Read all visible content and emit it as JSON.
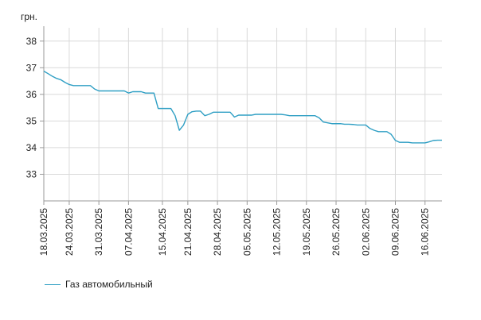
{
  "chart_data": {
    "type": "line",
    "ylabel": "грн.",
    "ylim": [
      32,
      38.5
    ],
    "yticks": [
      33,
      34,
      35,
      36,
      37,
      38
    ],
    "xlim": [
      "2025-03-18",
      "2025-06-20"
    ],
    "xticks": [
      "18.03.2025",
      "24.03.2025",
      "31.03.2025",
      "07.04.2025",
      "15.04.2025",
      "21.04.2025",
      "28.04.2025",
      "05.05.2025",
      "12.05.2025",
      "19.05.2025",
      "26.05.2025",
      "02.06.2025",
      "09.06.2025",
      "16.06.2025"
    ],
    "grid": true,
    "legend_position": "bottom-left",
    "series": [
      {
        "name": "Газ автомобильный",
        "color": "#2f9fc4",
        "points": [
          [
            "2025-03-18",
            36.87
          ],
          [
            "2025-03-19",
            36.78
          ],
          [
            "2025-03-20",
            36.68
          ],
          [
            "2025-03-21",
            36.6
          ],
          [
            "2025-03-22",
            36.55
          ],
          [
            "2025-03-23",
            36.45
          ],
          [
            "2025-03-24",
            36.37
          ],
          [
            "2025-03-25",
            36.33
          ],
          [
            "2025-03-26",
            36.33
          ],
          [
            "2025-03-27",
            36.33
          ],
          [
            "2025-03-28",
            36.33
          ],
          [
            "2025-03-29",
            36.33
          ],
          [
            "2025-03-30",
            36.2
          ],
          [
            "2025-03-31",
            36.13
          ],
          [
            "2025-04-01",
            36.13
          ],
          [
            "2025-04-02",
            36.13
          ],
          [
            "2025-04-03",
            36.13
          ],
          [
            "2025-04-04",
            36.13
          ],
          [
            "2025-04-05",
            36.13
          ],
          [
            "2025-04-06",
            36.13
          ],
          [
            "2025-04-07",
            36.05
          ],
          [
            "2025-04-08",
            36.1
          ],
          [
            "2025-04-09",
            36.1
          ],
          [
            "2025-04-10",
            36.1
          ],
          [
            "2025-04-11",
            36.05
          ],
          [
            "2025-04-12",
            36.05
          ],
          [
            "2025-04-13",
            36.05
          ],
          [
            "2025-04-14",
            35.47
          ],
          [
            "2025-04-15",
            35.47
          ],
          [
            "2025-04-16",
            35.47
          ],
          [
            "2025-04-17",
            35.47
          ],
          [
            "2025-04-18",
            35.2
          ],
          [
            "2025-04-19",
            34.65
          ],
          [
            "2025-04-20",
            34.85
          ],
          [
            "2025-04-21",
            35.25
          ],
          [
            "2025-04-22",
            35.35
          ],
          [
            "2025-04-23",
            35.37
          ],
          [
            "2025-04-24",
            35.37
          ],
          [
            "2025-04-25",
            35.2
          ],
          [
            "2025-04-26",
            35.25
          ],
          [
            "2025-04-27",
            35.33
          ],
          [
            "2025-04-28",
            35.33
          ],
          [
            "2025-04-29",
            35.33
          ],
          [
            "2025-04-30",
            35.33
          ],
          [
            "2025-05-01",
            35.33
          ],
          [
            "2025-05-02",
            35.15
          ],
          [
            "2025-05-03",
            35.22
          ],
          [
            "2025-05-04",
            35.22
          ],
          [
            "2025-05-05",
            35.22
          ],
          [
            "2025-05-06",
            35.22
          ],
          [
            "2025-05-07",
            35.25
          ],
          [
            "2025-05-08",
            35.25
          ],
          [
            "2025-05-09",
            35.25
          ],
          [
            "2025-05-10",
            35.25
          ],
          [
            "2025-05-11",
            35.25
          ],
          [
            "2025-05-12",
            35.25
          ],
          [
            "2025-05-13",
            35.25
          ],
          [
            "2025-05-14",
            35.23
          ],
          [
            "2025-05-15",
            35.2
          ],
          [
            "2025-05-16",
            35.2
          ],
          [
            "2025-05-17",
            35.2
          ],
          [
            "2025-05-18",
            35.2
          ],
          [
            "2025-05-19",
            35.2
          ],
          [
            "2025-05-20",
            35.2
          ],
          [
            "2025-05-21",
            35.2
          ],
          [
            "2025-05-22",
            35.12
          ],
          [
            "2025-05-23",
            34.96
          ],
          [
            "2025-05-24",
            34.93
          ],
          [
            "2025-05-25",
            34.9
          ],
          [
            "2025-05-26",
            34.9
          ],
          [
            "2025-05-27",
            34.9
          ],
          [
            "2025-05-28",
            34.88
          ],
          [
            "2025-05-29",
            34.88
          ],
          [
            "2025-05-30",
            34.87
          ],
          [
            "2025-05-31",
            34.85
          ],
          [
            "2025-06-01",
            34.85
          ],
          [
            "2025-06-02",
            34.85
          ],
          [
            "2025-06-03",
            34.72
          ],
          [
            "2025-06-04",
            34.65
          ],
          [
            "2025-06-05",
            34.6
          ],
          [
            "2025-06-06",
            34.6
          ],
          [
            "2025-06-07",
            34.6
          ],
          [
            "2025-06-08",
            34.5
          ],
          [
            "2025-06-09",
            34.27
          ],
          [
            "2025-06-10",
            34.2
          ],
          [
            "2025-06-11",
            34.2
          ],
          [
            "2025-06-12",
            34.2
          ],
          [
            "2025-06-13",
            34.18
          ],
          [
            "2025-06-14",
            34.18
          ],
          [
            "2025-06-15",
            34.18
          ],
          [
            "2025-06-16",
            34.18
          ],
          [
            "2025-06-17",
            34.22
          ],
          [
            "2025-06-18",
            34.27
          ],
          [
            "2025-06-19",
            34.28
          ],
          [
            "2025-06-20",
            34.28
          ]
        ]
      }
    ]
  }
}
